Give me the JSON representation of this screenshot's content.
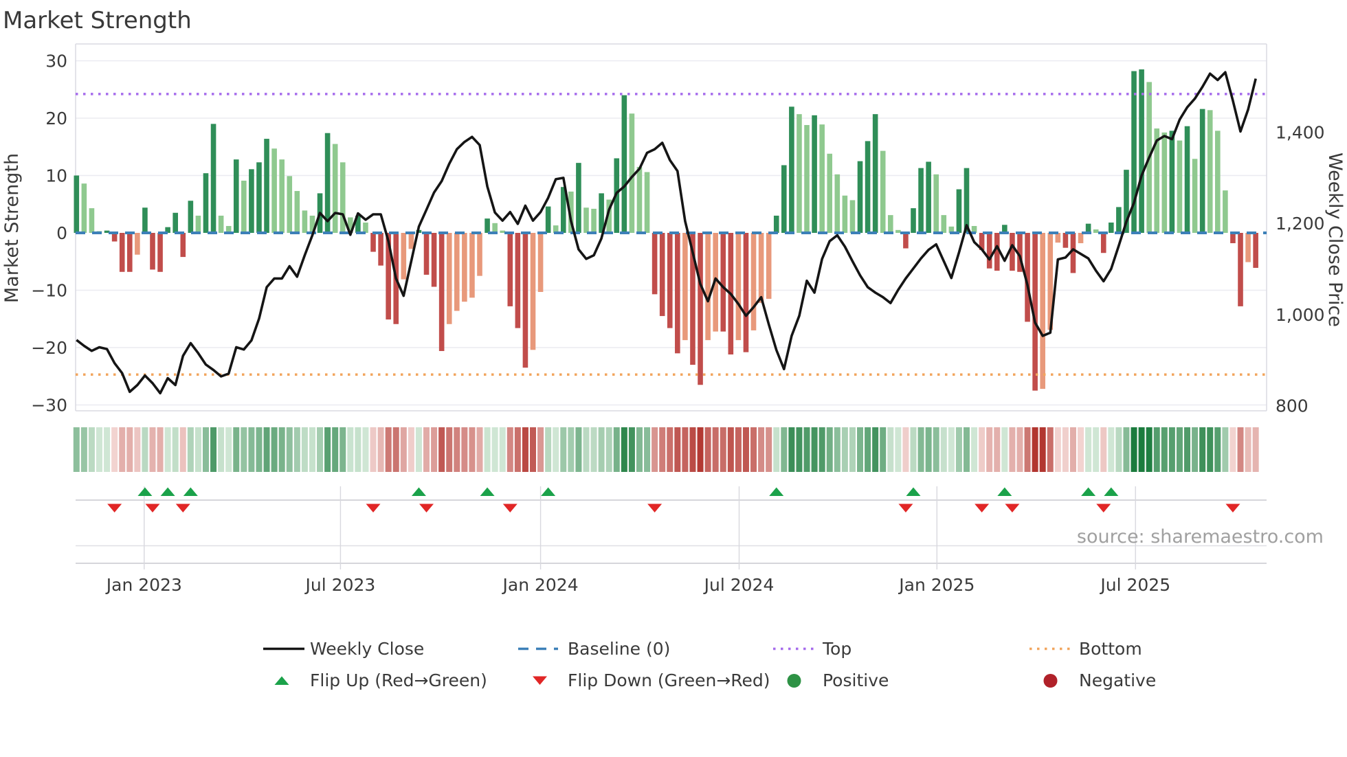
{
  "title": "Market Strength",
  "source": "source: sharemaestro.com",
  "axes": {
    "left_label": "Market Strength",
    "right_label": "Weekly Close Price",
    "left_ticks": [
      {
        "v": 30,
        "label": "30"
      },
      {
        "v": 20,
        "label": "20"
      },
      {
        "v": 10,
        "label": "10"
      },
      {
        "v": 0,
        "label": "0"
      },
      {
        "v": -10,
        "label": "−10"
      },
      {
        "v": -20,
        "label": "−20"
      },
      {
        "v": -30,
        "label": "−30"
      }
    ],
    "right_ticks": [
      {
        "v": 1400,
        "label": "1,400"
      },
      {
        "v": 1200,
        "label": "1,200"
      },
      {
        "v": 1000,
        "label": "1,000"
      },
      {
        "v": 800,
        "label": "800"
      }
    ],
    "x_ticks": [
      {
        "label": "Jan 2023",
        "week": 8.9
      },
      {
        "label": "Jul 2023",
        "week": 34.7
      },
      {
        "label": "Jan 2024",
        "week": 61.0
      },
      {
        "label": "Jul 2024",
        "week": 87.1
      },
      {
        "label": "Jan 2025",
        "week": 113.1
      },
      {
        "label": "Jul 2025",
        "week": 139.2
      }
    ]
  },
  "legend": {
    "weekly_close": "Weekly Close",
    "baseline": "Baseline (0)",
    "top": "Top",
    "bottom": "Bottom",
    "flip_up": "Flip Up (Red→Green)",
    "flip_down": "Flip Down (Green→Red)",
    "positive": "Positive",
    "negative": "Negative"
  },
  "chart_data": {
    "type": "bar+line combo with heatmap strip and flip markers",
    "frequency": "weekly",
    "start_date": "2022-11-06",
    "weeks": 156,
    "baseline_value": 0,
    "top_value": 24.2,
    "bottom_value": -24.7,
    "y_left_range": [
      -33,
      33
    ],
    "y_right_range": [
      770,
      1610
    ],
    "strength": [
      10.0,
      8.6,
      4.3,
      0.3,
      0.4,
      -1.5,
      -6.8,
      -6.8,
      -3.8,
      4.4,
      -6.4,
      -6.8,
      1.0,
      3.5,
      -4.2,
      5.6,
      3.0,
      10.4,
      19.0,
      3.0,
      1.2,
      12.8,
      9.1,
      11.1,
      12.3,
      16.4,
      14.7,
      12.8,
      9.9,
      7.3,
      3.9,
      3.0,
      6.9,
      17.4,
      15.5,
      12.3,
      2.7,
      3.0,
      1.8,
      -3.3,
      -5.7,
      -15.1,
      -15.9,
      -8.1,
      -2.8,
      0.5,
      -7.3,
      -9.4,
      -20.6,
      -15.9,
      -13.6,
      -12.0,
      -11.3,
      -7.5,
      2.5,
      1.7,
      0.4,
      -12.8,
      -16.6,
      -23.5,
      -20.4,
      -10.3,
      4.6,
      1.3,
      8.0,
      7.2,
      12.2,
      4.4,
      4.2,
      6.9,
      5.8,
      13.0,
      24.0,
      20.8,
      11.5,
      10.6,
      -10.7,
      -14.5,
      -16.6,
      -21.0,
      -18.7,
      -23.0,
      -26.5,
      -18.7,
      -17.2,
      -17.2,
      -21.2,
      -18.7,
      -20.8,
      -17.0,
      -12.2,
      -11.5,
      3.0,
      11.8,
      22.0,
      20.7,
      18.8,
      20.5,
      18.9,
      13.8,
      10.2,
      6.5,
      5.7,
      12.5,
      16.0,
      20.7,
      14.3,
      3.1,
      0.5,
      -2.7,
      4.3,
      11.3,
      12.4,
      10.2,
      3.1,
      1.1,
      7.6,
      11.3,
      1.2,
      -3.0,
      -6.2,
      -6.6,
      1.4,
      -6.6,
      -6.8,
      -15.5,
      -27.5,
      -27.2,
      -16.9,
      -1.7,
      -2.6,
      -7.0,
      -1.8,
      1.6,
      0.6,
      -3.5,
      1.8,
      4.5,
      11.0,
      28.2,
      28.5,
      26.3,
      18.2,
      17.5,
      17.8,
      16.1,
      18.6,
      12.9,
      21.6,
      21.4,
      17.8,
      7.4,
      -1.8,
      -12.8,
      -5.1,
      -6.1
    ],
    "weekly_close": [
      944,
      931,
      920,
      928,
      924,
      893,
      871,
      830,
      845,
      866,
      849,
      827,
      860,
      845,
      909,
      937,
      915,
      890,
      878,
      864,
      870,
      928,
      923,
      943,
      991,
      1060,
      1079,
      1079,
      1106,
      1083,
      1130,
      1174,
      1223,
      1205,
      1223,
      1220,
      1175,
      1222,
      1208,
      1220,
      1220,
      1161,
      1079,
      1041,
      1117,
      1193,
      1230,
      1268,
      1293,
      1331,
      1363,
      1379,
      1390,
      1372,
      1281,
      1224,
      1206,
      1225,
      1199,
      1239,
      1206,
      1225,
      1256,
      1297,
      1300,
      1205,
      1143,
      1122,
      1130,
      1167,
      1230,
      1267,
      1281,
      1302,
      1320,
      1355,
      1363,
      1377,
      1339,
      1315,
      1205,
      1136,
      1067,
      1029,
      1079,
      1060,
      1045,
      1023,
      997,
      1016,
      1038,
      978,
      922,
      880,
      953,
      997,
      1074,
      1048,
      1122,
      1161,
      1174,
      1149,
      1117,
      1086,
      1060,
      1048,
      1038,
      1025,
      1054,
      1079,
      1101,
      1123,
      1142,
      1154,
      1117,
      1080,
      1136,
      1196,
      1159,
      1143,
      1121,
      1150,
      1118,
      1152,
      1128,
      1065,
      982,
      953,
      960,
      1121,
      1125,
      1143,
      1133,
      1123,
      1096,
      1073,
      1100,
      1151,
      1204,
      1245,
      1305,
      1345,
      1382,
      1392,
      1385,
      1428,
      1455,
      1474,
      1500,
      1529,
      1515,
      1532,
      1470,
      1402,
      1450,
      1518
    ],
    "colors": {
      "bar_positive_strong": "#2f8e58",
      "bar_positive_soft": "#8fc98f",
      "bar_negative_strong": "#c14d4b",
      "bar_negative_soft": "#e8997b",
      "price_line": "#151515",
      "baseline": "#3d80b8",
      "top_line": "#a66cec",
      "bottom_line": "#f2a55e",
      "flip_up_marker": "#1ba24a",
      "flip_down_marker": "#e12626",
      "positive_dot": "#2e9245",
      "negative_dot": "#b02129",
      "heat_green_max": "#1c7c3e",
      "heat_red_max": "#b23630"
    }
  }
}
